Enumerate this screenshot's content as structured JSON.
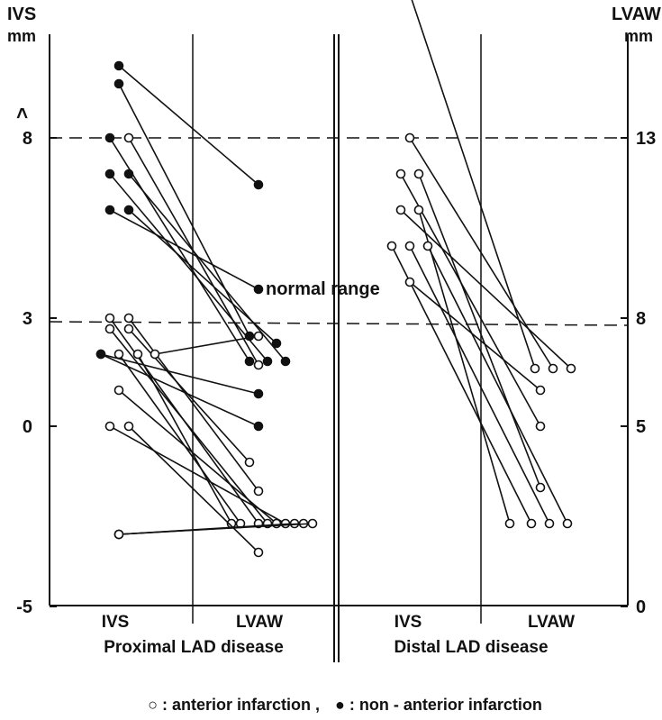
{
  "chart_data": {
    "type": "scatter",
    "left_axis": {
      "label": "IVS",
      "unit": "mm",
      "ticks": [
        "8",
        "3",
        "0",
        "-5"
      ],
      "ylim": [
        -5,
        11
      ],
      "arrow_mark": ">"
    },
    "right_axis": {
      "label": "LVAW",
      "unit": "mm",
      "ticks": [
        "13",
        "8",
        "5",
        "0"
      ],
      "ylim": [
        0,
        16
      ]
    },
    "reference_lines": {
      "ivs_8": 8,
      "ivs_3": 2.9,
      "lvaw_13": 13,
      "lvaw_8": 7.8
    },
    "annotation": "normal range",
    "panels": [
      {
        "group": "Proximal LAD disease",
        "x_labels": [
          "IVS",
          "LVAW"
        ]
      },
      {
        "group": "Distal LAD disease",
        "x_labels": [
          "IVS",
          "LVAW"
        ]
      }
    ],
    "legend": {
      "anterior": "○ : anterior infarction ,",
      "non_anterior": "● : non - anterior infarction"
    },
    "series": [
      {
        "name": "anterior infarction",
        "marker": "open",
        "pairs": [
          {
            "panel": 0,
            "ivs": 8.0,
            "lvaw": 6.7,
            "ivs_off": 21,
            "lvaw_off": -3
          },
          {
            "panel": 0,
            "ivs": 3.0,
            "lvaw": 2.3,
            "ivs_off": 0,
            "lvaw_off": -3
          },
          {
            "panel": 0,
            "ivs": 3.0,
            "lvaw": 3.2,
            "ivs_off": 21,
            "lvaw_off": -3
          },
          {
            "panel": 0,
            "ivs": 2.7,
            "lvaw": 2.3,
            "ivs_off": 0,
            "lvaw_off": 7
          },
          {
            "panel": 0,
            "ivs": 2.7,
            "lvaw": 4.0,
            "ivs_off": 21,
            "lvaw_off": -13
          },
          {
            "panel": 0,
            "ivs": 2.0,
            "lvaw": 2.3,
            "ivs_off": 10,
            "lvaw_off": -23
          },
          {
            "panel": 0,
            "ivs": 2.0,
            "lvaw": 2.3,
            "ivs_off": 31,
            "lvaw_off": -33
          },
          {
            "panel": 0,
            "ivs": 2.0,
            "lvaw": 7.5,
            "ivs_off": 50,
            "lvaw_off": -3
          },
          {
            "panel": 0,
            "ivs": 1.0,
            "lvaw": 2.3,
            "ivs_off": 10,
            "lvaw_off": 17
          },
          {
            "panel": 0,
            "ivs": 0.0,
            "lvaw": 2.3,
            "ivs_off": 0,
            "lvaw_off": 27
          },
          {
            "panel": 0,
            "ivs": 0.0,
            "lvaw": 1.5,
            "ivs_off": 21,
            "lvaw_off": -3
          },
          {
            "panel": 0,
            "ivs": -3.0,
            "lvaw": 2.3,
            "ivs_off": 10,
            "lvaw_off": 37
          },
          {
            "panel": 0,
            "ivs": -3.0,
            "lvaw": 2.3,
            "ivs_off": 10,
            "lvaw_off": 47
          },
          {
            "panel": 0,
            "ivs": -3.0,
            "lvaw": 2.3,
            "ivs_off": 10,
            "lvaw_off": 57
          },
          {
            "panel": 1,
            "ivs": 12.0,
            "lvaw": 6.6,
            "ivs_off": 15,
            "lvaw_off": -6
          },
          {
            "panel": 1,
            "ivs": 8.0,
            "lvaw": 6.6,
            "ivs_off": 15,
            "lvaw_off": 14
          },
          {
            "panel": 1,
            "ivs": 7.0,
            "lvaw": 5.0,
            "ivs_off": 5,
            "lvaw_off": 0
          },
          {
            "panel": 1,
            "ivs": 7.0,
            "lvaw": 3.3,
            "ivs_off": 25,
            "lvaw_off": 0
          },
          {
            "panel": 1,
            "ivs": 6.0,
            "lvaw": 6.6,
            "ivs_off": 5,
            "lvaw_off": 34
          },
          {
            "panel": 1,
            "ivs": 6.0,
            "lvaw": 2.3,
            "ivs_off": 25,
            "lvaw_off": -34
          },
          {
            "panel": 1,
            "ivs": 5.0,
            "lvaw": 2.3,
            "ivs_off": -5,
            "lvaw_off": -10
          },
          {
            "panel": 1,
            "ivs": 5.0,
            "lvaw": 2.3,
            "ivs_off": 15,
            "lvaw_off": 10
          },
          {
            "panel": 1,
            "ivs": 5.0,
            "lvaw": 2.3,
            "ivs_off": 35,
            "lvaw_off": 30
          },
          {
            "panel": 1,
            "ivs": 4.0,
            "lvaw": 6.0,
            "ivs_off": 15,
            "lvaw_off": 0
          }
        ]
      },
      {
        "name": "non-anterior infarction",
        "marker": "filled",
        "pairs": [
          {
            "panel": 0,
            "ivs": 10.0,
            "lvaw": 11.7,
            "ivs_off": 10,
            "lvaw_off": -3
          },
          {
            "panel": 0,
            "ivs": 9.5,
            "lvaw": 7.5,
            "ivs_off": 10,
            "lvaw_off": -13
          },
          {
            "panel": 0,
            "ivs": 8.0,
            "lvaw": 6.8,
            "ivs_off": 0,
            "lvaw_off": -13
          },
          {
            "panel": 0,
            "ivs": 7.0,
            "lvaw": 6.8,
            "ivs_off": 0,
            "lvaw_off": 7
          },
          {
            "panel": 0,
            "ivs": 7.0,
            "lvaw": 6.8,
            "ivs_off": 21,
            "lvaw_off": 27
          },
          {
            "panel": 0,
            "ivs": 6.0,
            "lvaw": 8.8,
            "ivs_off": 0,
            "lvaw_off": -3
          },
          {
            "panel": 0,
            "ivs": 6.0,
            "lvaw": 7.3,
            "ivs_off": 21,
            "lvaw_off": 17
          },
          {
            "panel": 0,
            "ivs": 2.0,
            "lvaw": 5.9,
            "ivs_off": -10,
            "lvaw_off": -3
          },
          {
            "panel": 0,
            "ivs": 2.0,
            "lvaw": 5.0,
            "ivs_off": -10,
            "lvaw_off": -3
          }
        ]
      }
    ]
  }
}
